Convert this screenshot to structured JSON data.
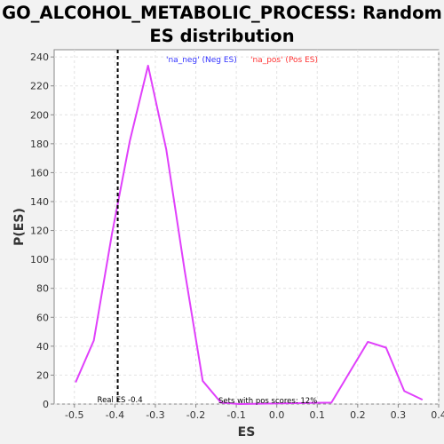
{
  "chart_data": {
    "type": "line",
    "title": "GO_ALCOHOL_METABOLIC_PROCESS: Random ES distribution",
    "xlabel": "ES",
    "ylabel": "P(ES)",
    "xlim": [
      -0.55,
      0.4
    ],
    "ylim": [
      0,
      245
    ],
    "xticks": [
      "-0.5",
      "-0.4",
      "-0.3",
      "-0.2",
      "-0.1",
      "0.0",
      "0.1",
      "0.2",
      "0.3",
      "0.4"
    ],
    "yticks": [
      "0",
      "20",
      "40",
      "60",
      "80",
      "100",
      "120",
      "140",
      "160",
      "180",
      "200",
      "220",
      "240"
    ],
    "grid": true,
    "legend": [
      {
        "label": "'na_neg' (Neg ES)",
        "color": "#3333ff"
      },
      {
        "label": "'na_pos' (Pos ES)",
        "color": "#ff3333"
      }
    ],
    "series": [
      {
        "color": "#e040fb",
        "x": [
          -0.497,
          -0.452,
          -0.407,
          -0.363,
          -0.318,
          -0.273,
          -0.228,
          -0.183,
          -0.138,
          -0.093,
          0.135,
          0.18,
          0.225,
          0.27,
          0.315,
          0.36
        ],
        "y": [
          15,
          44,
          118,
          182,
          234,
          176,
          93,
          16,
          1,
          0,
          1,
          22,
          43,
          39,
          9,
          3
        ]
      }
    ],
    "real_es": {
      "x": -0.393,
      "label": "Real ES -0.4"
    },
    "annotation": "Sets with pos scores: 12%"
  }
}
